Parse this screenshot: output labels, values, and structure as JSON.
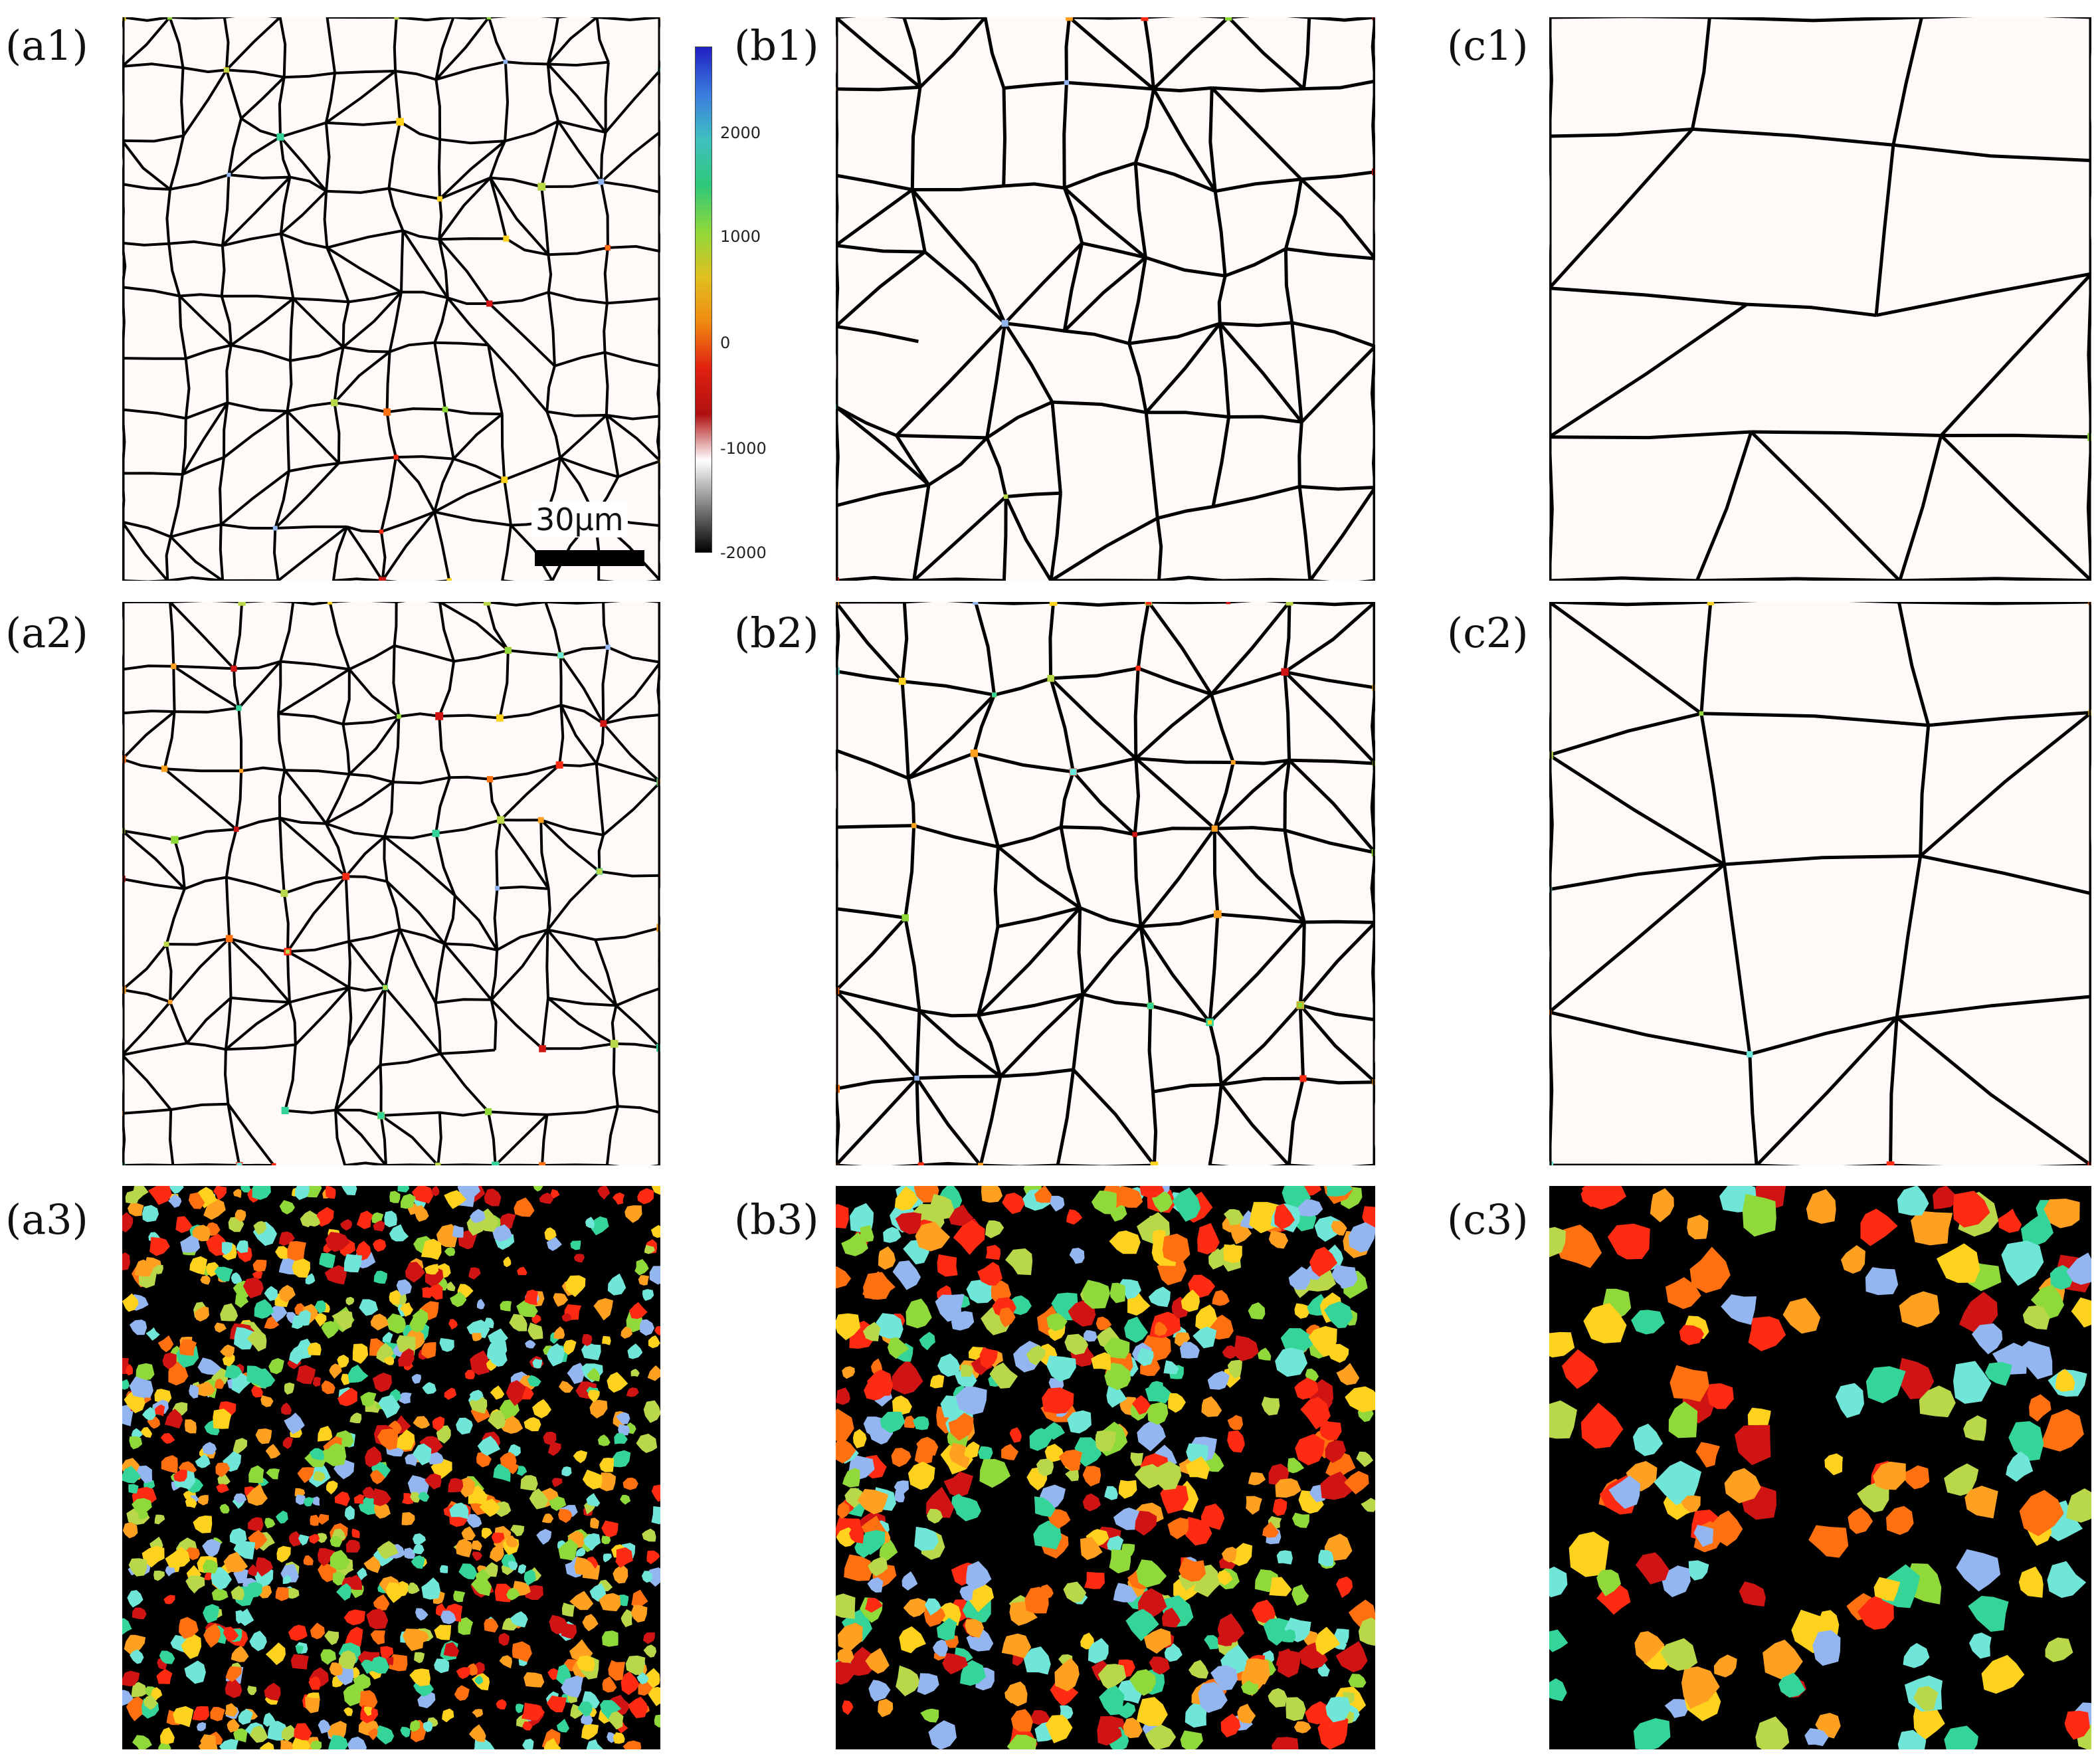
{
  "figure": {
    "panels": [
      {
        "id": "a1",
        "label": "(a1)",
        "type": "boundary",
        "cols": 10,
        "rows": 10,
        "seed": 11,
        "stroke": 4,
        "dots": 0.05
      },
      {
        "id": "b1",
        "label": "(b1)",
        "type": "boundary",
        "cols": 7,
        "rows": 7,
        "seed": 23,
        "stroke": 5,
        "dots": 0.04
      },
      {
        "id": "c1",
        "label": "(c1)",
        "type": "boundary",
        "cols": 3,
        "rows": 4,
        "seed": 37,
        "stroke": 5,
        "dots": 0.02
      },
      {
        "id": "a2",
        "label": "(a2)",
        "type": "boundary",
        "cols": 10,
        "rows": 10,
        "seed": 41,
        "stroke": 4,
        "dots": 0.12
      },
      {
        "id": "b2",
        "label": "(b2)",
        "type": "boundary",
        "cols": 7,
        "rows": 7,
        "seed": 53,
        "stroke": 5,
        "dots": 0.18
      },
      {
        "id": "c2",
        "label": "(c2)",
        "type": "boundary",
        "cols": 3,
        "rows": 4,
        "seed": 67,
        "stroke": 5,
        "dots": 0.22
      },
      {
        "id": "a3",
        "label": "(a3)",
        "type": "blobs",
        "count": 900,
        "seed": 71,
        "minR": 7,
        "maxR": 17
      },
      {
        "id": "b3",
        "label": "(b3)",
        "type": "blobs",
        "count": 520,
        "seed": 83,
        "minR": 10,
        "maxR": 24
      },
      {
        "id": "c3",
        "label": "(c3)",
        "type": "blobs",
        "count": 150,
        "seed": 97,
        "minR": 16,
        "maxR": 34
      }
    ],
    "scale_bar": {
      "label": "30μm"
    },
    "colorbar": {
      "ticks": [
        "2000",
        "1000",
        "0",
        "-1000",
        "-2000"
      ],
      "colors": [
        "#2020c0",
        "#3a7be0",
        "#3fc0c0",
        "#2ec87a",
        "#8fd83a",
        "#e0c020",
        "#f08a10",
        "#e02010",
        "#b01010",
        "#ffffff",
        "#808080",
        "#000000"
      ]
    },
    "grain_palette": [
      "#ff2a12",
      "#ff7010",
      "#ffa020",
      "#ffd21e",
      "#8fd93a",
      "#35d59a",
      "#6fe6d8",
      "#93b6f0",
      "#d01414",
      "#b8d84a"
    ]
  }
}
